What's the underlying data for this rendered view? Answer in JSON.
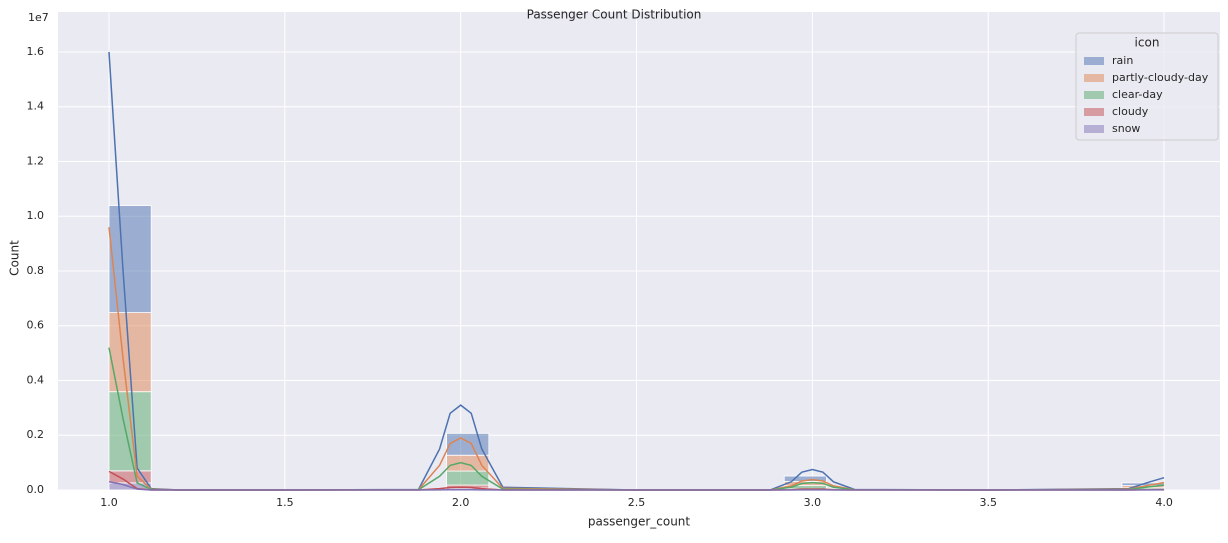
{
  "chart_data": {
    "type": "histogram",
    "title": "Passenger Count Distribution",
    "x_label": "passenger_count",
    "y_label": "Count",
    "y_offset_label": "1e7",
    "xlim": [
      0.855,
      4.159
    ],
    "ylim": [
      0,
      17460000
    ],
    "xticks": [
      {
        "value": 1,
        "label": "1.0"
      },
      1.5,
      {
        "value": 2,
        "label": "2.0"
      },
      2.5,
      {
        "value": 3,
        "label": "3.0"
      },
      3.5,
      {
        "value": 4,
        "label": "4.0"
      }
    ],
    "yticks": [
      {
        "value": 0,
        "label": "0.0"
      },
      {
        "value": 2000000,
        "label": "0.2"
      },
      {
        "value": 4000000,
        "label": "0.4"
      },
      {
        "value": 6000000,
        "label": "0.6"
      },
      {
        "value": 8000000,
        "label": "0.8"
      },
      {
        "value": 10000000,
        "label": "1.0"
      },
      {
        "value": 12000000,
        "label": "1.2"
      },
      {
        "value": 14000000,
        "label": "1.4"
      },
      {
        "value": 16000000,
        "label": "1.6"
      }
    ],
    "grid": true,
    "stacked": true,
    "legend_title": "icon",
    "legend_position": "upper right",
    "bins": [
      1.0,
      1.12,
      1.24,
      1.36,
      1.48,
      1.6,
      1.72,
      1.84,
      1.96,
      2.08,
      2.2,
      2.32,
      2.44,
      2.56,
      2.68,
      2.8,
      2.92,
      3.04,
      3.16,
      3.28,
      3.4,
      3.52,
      3.64,
      3.76,
      3.88,
      4.0
    ],
    "kde_x": [
      1.0,
      1.04,
      1.08,
      1.12,
      1.2,
      1.5,
      1.88,
      1.94,
      1.97,
      2.0,
      2.03,
      2.06,
      2.12,
      2.5,
      2.88,
      2.94,
      2.97,
      3.0,
      3.03,
      3.06,
      3.12,
      3.5,
      3.9,
      3.96,
      4.0
    ],
    "series": [
      {
        "name": "rain",
        "color": "#4c72b0",
        "values": [
          3910000,
          0,
          0,
          0,
          0,
          0,
          0,
          0,
          800000,
          0,
          0,
          0,
          0,
          0,
          0,
          0,
          200000,
          0,
          0,
          0,
          0,
          0,
          0,
          0,
          100000
        ],
        "kde": [
          16000000,
          8000000,
          800000,
          50000,
          0,
          0,
          20000,
          1500000,
          2800000,
          3100000,
          2800000,
          1500000,
          100000,
          0,
          0,
          300000,
          650000,
          750000,
          650000,
          300000,
          20000,
          0,
          50000,
          300000,
          450000
        ]
      },
      {
        "name": "partly-cloudy-day",
        "color": "#dd8452",
        "values": [
          2890000,
          0,
          0,
          0,
          0,
          0,
          0,
          0,
          580000,
          0,
          0,
          0,
          0,
          0,
          0,
          0,
          150000,
          0,
          0,
          0,
          0,
          0,
          0,
          0,
          80000
        ],
        "kde": [
          9600000,
          4800000,
          500000,
          30000,
          0,
          0,
          10000,
          900000,
          1700000,
          1900000,
          1700000,
          900000,
          60000,
          0,
          0,
          150000,
          330000,
          380000,
          330000,
          150000,
          10000,
          0,
          30000,
          180000,
          270000
        ]
      },
      {
        "name": "clear-day",
        "color": "#55a868",
        "values": [
          2890000,
          0,
          0,
          0,
          0,
          0,
          0,
          0,
          510000,
          0,
          0,
          0,
          0,
          0,
          0,
          0,
          120000,
          0,
          0,
          0,
          0,
          0,
          0,
          0,
          60000
        ],
        "kde": [
          5200000,
          2600000,
          260000,
          20000,
          0,
          0,
          10000,
          500000,
          900000,
          1000000,
          900000,
          500000,
          30000,
          0,
          0,
          100000,
          240000,
          270000,
          240000,
          100000,
          10000,
          0,
          20000,
          120000,
          180000
        ]
      },
      {
        "name": "cloudy",
        "color": "#c44e52",
        "values": [
          440000,
          0,
          0,
          0,
          0,
          0,
          0,
          0,
          110000,
          0,
          0,
          0,
          0,
          0,
          0,
          0,
          30000,
          0,
          0,
          0,
          0,
          0,
          0,
          0,
          15000
        ],
        "kde": [
          680000,
          400000,
          50000,
          0,
          0,
          0,
          0,
          50000,
          90000,
          100000,
          90000,
          50000,
          0,
          0,
          0,
          10000,
          30000,
          30000,
          30000,
          10000,
          0,
          0,
          0,
          10000,
          20000
        ]
      },
      {
        "name": "snow",
        "color": "#8172b3",
        "values": [
          260000,
          0,
          0,
          0,
          0,
          0,
          0,
          0,
          70000,
          0,
          0,
          0,
          0,
          0,
          0,
          0,
          10000,
          0,
          0,
          0,
          0,
          0,
          0,
          0,
          5000
        ],
        "kde": [
          300000,
          200000,
          30000,
          0,
          0,
          0,
          0,
          5000,
          10000,
          10000,
          10000,
          5000,
          0,
          0,
          0,
          0,
          5000,
          5000,
          5000,
          0,
          0,
          0,
          0,
          5000,
          5000
        ]
      }
    ]
  }
}
